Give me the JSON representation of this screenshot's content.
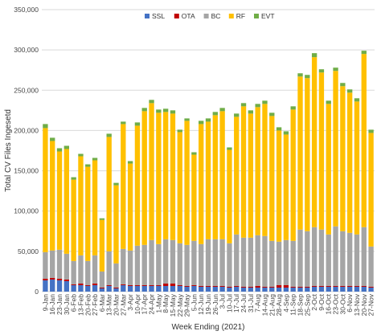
{
  "chart_data": {
    "type": "bar",
    "stacked": true,
    "title": "",
    "xlabel": "Week Ending (2021)",
    "ylabel": "Total CV Files Ingesetd",
    "ylim": [
      0,
      350000
    ],
    "yticks": [
      0,
      50000,
      100000,
      150000,
      200000,
      250000,
      300000,
      350000
    ],
    "ytick_labels": [
      "0",
      "50,000",
      "100,000",
      "150,000",
      "200,000",
      "250,000",
      "300,000",
      "350,000"
    ],
    "grid": true,
    "legend_position": "top-center",
    "colors": {
      "SSL": "#4472C4",
      "OTA": "#C00000",
      "BC": "#A5A5A5",
      "RF": "#FFC000",
      "EVT": "#70AD47"
    },
    "categories": [
      "9-Jan",
      "16-Jan",
      "23-Jan",
      "30-Jan",
      "6-Feb",
      "13-Feb",
      "20-Feb",
      "27-Feb",
      "6-Mar",
      "13-Mar",
      "20-Mar",
      "27-Mar",
      "3-Apr",
      "10-Apr",
      "17-Apr",
      "24-Apr",
      "1-May",
      "8-May",
      "15-May",
      "22-May",
      "29-May",
      "5-Jun",
      "12-Jun",
      "19-Jun",
      "26-Jun",
      "3-Jul",
      "10-Jul",
      "17-Jul",
      "24-Jul",
      "31-Jul",
      "7-Aug",
      "14-Aug",
      "21-Aug",
      "28-Aug",
      "4-Sep",
      "11-Sep",
      "18-Sep",
      "25-Sep",
      "2-Oct",
      "9-Oct",
      "16-Oct",
      "23-Oct",
      "30-Oct",
      "6-Nov",
      "13-Nov",
      "20-Nov",
      "27-Nov"
    ],
    "series": [
      {
        "name": "SSL",
        "values": [
          14000,
          15000,
          14000,
          13000,
          8000,
          8000,
          7000,
          8000,
          4000,
          7000,
          4000,
          8000,
          7000,
          7000,
          7000,
          7000,
          7000,
          7000,
          7000,
          7000,
          6000,
          7000,
          6000,
          6000,
          6000,
          6000,
          5000,
          6000,
          5000,
          5000,
          5000,
          5000,
          5000,
          5000,
          5000,
          5000,
          5000,
          5000,
          6000,
          6000,
          6000,
          6000,
          6000,
          6000,
          6000,
          6000,
          5000
        ]
      },
      {
        "name": "OTA",
        "values": [
          2000,
          2000,
          2000,
          2000,
          1000,
          2000,
          1000,
          2000,
          1000,
          1000,
          1000,
          1000,
          1000,
          1000,
          1000,
          1000,
          1000,
          3000,
          3000,
          1000,
          1000,
          1000,
          1000,
          1000,
          1000,
          1000,
          1000,
          1000,
          1000,
          1000,
          2000,
          1000,
          1000,
          3000,
          3000,
          1000,
          1000,
          1000,
          1000,
          1000,
          1000,
          1000,
          1000,
          1000,
          1000,
          1000,
          1000
        ]
      },
      {
        "name": "BC",
        "values": [
          33000,
          34000,
          36000,
          32000,
          29000,
          35000,
          30000,
          35000,
          20000,
          42000,
          30000,
          44000,
          43000,
          49000,
          50000,
          56000,
          51000,
          55000,
          54000,
          52000,
          51000,
          55000,
          52000,
          58000,
          58000,
          58000,
          54000,
          64000,
          61000,
          61000,
          63000,
          63000,
          57000,
          54000,
          56000,
          57000,
          71000,
          69000,
          73000,
          70000,
          64000,
          74000,
          68000,
          66000,
          64000,
          73000,
          50000
        ]
      },
      {
        "name": "RF",
        "values": [
          154000,
          136000,
          122000,
          130000,
          101000,
          123000,
          117000,
          118000,
          64000,
          142000,
          97000,
          155000,
          108000,
          149000,
          166000,
          170000,
          163000,
          158000,
          157000,
          138000,
          154000,
          107000,
          149000,
          146000,
          154000,
          159000,
          116000,
          146000,
          163000,
          154000,
          159000,
          164000,
          155000,
          138000,
          131000,
          163000,
          190000,
          190000,
          211000,
          195000,
          162000,
          193000,
          180000,
          174000,
          165000,
          215000,
          141000
        ]
      },
      {
        "name": "EVT",
        "values": [
          5000,
          4000,
          4000,
          4000,
          3000,
          3000,
          3000,
          3000,
          2000,
          4000,
          3000,
          3000,
          3000,
          4000,
          4000,
          4000,
          4000,
          4000,
          4000,
          3000,
          3000,
          3000,
          4000,
          4000,
          4000,
          4000,
          3000,
          4000,
          4000,
          4000,
          4000,
          4000,
          4000,
          4000,
          4000,
          4000,
          4000,
          4000,
          5000,
          4000,
          4000,
          4000,
          4000,
          4000,
          4000,
          4000,
          4000
        ]
      }
    ]
  }
}
